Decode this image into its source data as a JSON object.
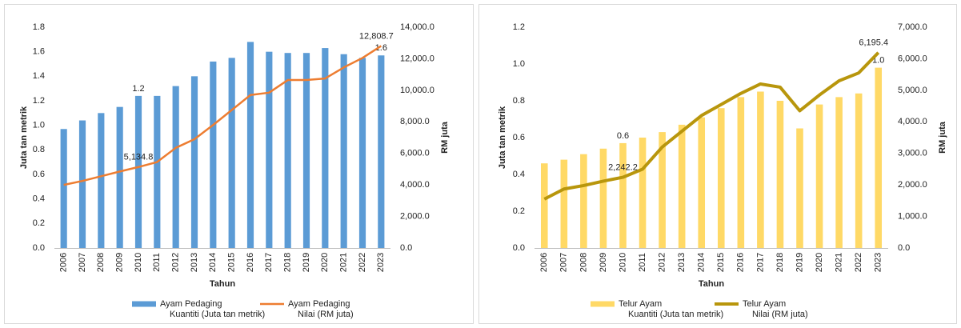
{
  "chart_data": [
    {
      "type": "combo",
      "categories": [
        "2006",
        "2007",
        "2008",
        "2009",
        "2010",
        "2011",
        "2012",
        "2013",
        "2014",
        "2015",
        "2016",
        "2017",
        "2018",
        "2019",
        "2020",
        "2021",
        "2022",
        "2023"
      ],
      "series": [
        {
          "name": "Ayam Pedaging\nKuantiti (Juta tan metrik)",
          "color": "#5b9bd5",
          "values": [
            0.97,
            1.04,
            1.1,
            1.15,
            1.24,
            1.24,
            1.32,
            1.4,
            1.52,
            1.55,
            1.68,
            1.6,
            1.59,
            1.59,
            1.63,
            1.58,
            1.55,
            1.57
          ],
          "value_labels": [
            null,
            null,
            null,
            null,
            "1.2",
            null,
            null,
            null,
            null,
            null,
            null,
            null,
            null,
            null,
            null,
            null,
            null,
            "1.6"
          ]
        },
        {
          "name": "Ayam Pedaging\nNilai (RM juta)",
          "color": "#ed7d31",
          "axis": "y2",
          "values": [
            4000,
            4250,
            4550,
            4850,
            5134.8,
            5450,
            6350,
            6900,
            7800,
            8750,
            9700,
            9850,
            10650,
            10650,
            10750,
            11450,
            12050,
            12808.7
          ],
          "value_labels": [
            null,
            null,
            null,
            null,
            "5,134.8",
            null,
            null,
            null,
            null,
            null,
            null,
            null,
            null,
            null,
            null,
            null,
            null,
            "12,808.7"
          ]
        }
      ],
      "x_label": "Tahun",
      "y_label": "Juta tan metrik",
      "y2_label": "RM juta",
      "ylim": [
        0,
        1.8
      ],
      "yticks": [
        {
          "value": 0,
          "label": "0.0"
        },
        0.2,
        0.4,
        0.6,
        0.8,
        {
          "value": 1,
          "label": "1.0"
        },
        1.2,
        1.4,
        1.6,
        1.8
      ],
      "y2lim": [
        0,
        14000
      ],
      "y2ticks": [
        {
          "value": 0,
          "label": "0.0"
        },
        {
          "value": 2000,
          "label": "2,000.0"
        },
        {
          "value": 4000,
          "label": "4,000.0"
        },
        {
          "value": 6000,
          "label": "6,000.0"
        },
        {
          "value": 8000,
          "label": "8,000.0"
        },
        {
          "value": 10000,
          "label": "10,000.0"
        },
        {
          "value": 12000,
          "label": "12,000.0"
        },
        {
          "value": 14000,
          "label": "14,000.0"
        }
      ]
    },
    {
      "type": "combo",
      "categories": [
        "2006",
        "2007",
        "2008",
        "2009",
        "2010",
        "2011",
        "2012",
        "2013",
        "2014",
        "2015",
        "2016",
        "2017",
        "2018",
        "2019",
        "2020",
        "2021",
        "2022",
        "2023"
      ],
      "series": [
        {
          "name": "Telur Ayam\nKuantiti (Juta tan metrik)",
          "color": "#ffd966",
          "values": [
            0.46,
            0.48,
            0.51,
            0.54,
            0.57,
            0.6,
            0.63,
            0.67,
            0.71,
            0.76,
            0.82,
            0.85,
            0.8,
            0.65,
            0.78,
            0.82,
            0.84,
            0.98
          ],
          "value_labels": [
            null,
            null,
            null,
            null,
            "0.6",
            null,
            null,
            null,
            null,
            null,
            null,
            null,
            null,
            null,
            null,
            null,
            null,
            "1.0"
          ]
        },
        {
          "name": "Telur Ayam\nNilai (RM juta)",
          "color": "#b8960c",
          "axis": "y2",
          "values": [
            1550,
            1870,
            1980,
            2120,
            2242.2,
            2500,
            3200,
            3700,
            4200,
            4550,
            4900,
            5200,
            5100,
            4350,
            4850,
            5300,
            5550,
            6195.4
          ],
          "value_labels": [
            null,
            null,
            null,
            null,
            "2,242.2",
            null,
            null,
            null,
            null,
            null,
            null,
            null,
            null,
            null,
            null,
            null,
            null,
            "6,195.4"
          ]
        }
      ],
      "x_label": "Tahun",
      "y_label": "Juta tan metrik",
      "y2_label": "RM juta",
      "ylim": [
        0,
        1.2
      ],
      "yticks": [
        {
          "value": 0,
          "label": "0.0"
        },
        0.2,
        0.4,
        0.6,
        0.8,
        {
          "value": 1,
          "label": "1.0"
        },
        1.2
      ],
      "y2lim": [
        0,
        7000
      ],
      "y2ticks": [
        {
          "value": 0,
          "label": "0.0"
        },
        {
          "value": 1000,
          "label": "1,000.0"
        },
        {
          "value": 2000,
          "label": "2,000.0"
        },
        {
          "value": 3000,
          "label": "3,000.0"
        },
        {
          "value": 4000,
          "label": "4,000.0"
        },
        {
          "value": 5000,
          "label": "5,000.0"
        },
        {
          "value": 6000,
          "label": "6,000.0"
        },
        {
          "value": 7000,
          "label": "7,000.0"
        }
      ]
    }
  ]
}
